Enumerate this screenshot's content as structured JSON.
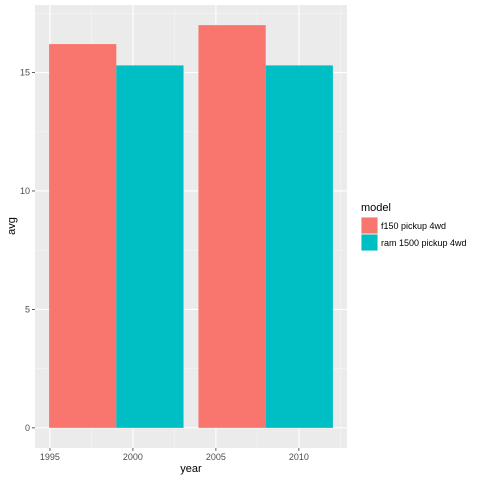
{
  "chart_data": {
    "type": "bar",
    "xlabel": "year",
    "ylabel": "avg",
    "x_ticks": [
      1995,
      2000,
      2005,
      2010
    ],
    "y_ticks": [
      0,
      5,
      10,
      15
    ],
    "xlim": [
      1994.1,
      2012.9
    ],
    "ylim": [
      -0.85,
      17.85
    ],
    "grid": true,
    "legend": {
      "title": "model",
      "position": "right"
    },
    "series": [
      {
        "name": "f150 pickup 4wd",
        "color": "#F8766D",
        "x": [
          1999,
          2008
        ],
        "values": [
          16.2,
          17.0
        ]
      },
      {
        "name": "ram 1500 pickup 4wd",
        "color": "#00BFC4",
        "x": [
          1999,
          2008
        ],
        "values": [
          15.3,
          15.3
        ]
      }
    ],
    "bar_half_span_years": 4.05
  }
}
